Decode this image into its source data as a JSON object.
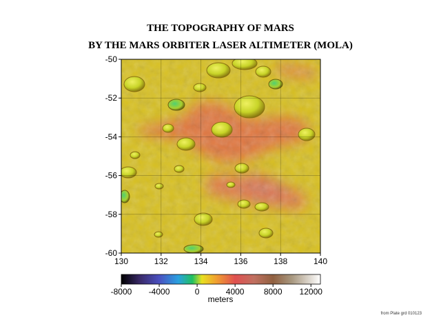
{
  "title_line1": "THE TOPOGRAPHY OF MARS",
  "title_line2": "BY THE MARS ORBITER LASER ALTIMETER (MOLA)",
  "credit": "from Plate grd 010123",
  "colorbar": {
    "label": "meters",
    "tick_labels": [
      "-8000",
      "-4000",
      "0",
      "4000",
      "8000",
      "12000"
    ],
    "range": [
      -8000,
      13000
    ],
    "stops": [
      {
        "value": -8000,
        "color": "#000000"
      },
      {
        "value": -6000,
        "color": "#3a2a6a"
      },
      {
        "value": -4000,
        "color": "#4a50c0"
      },
      {
        "value": -2000,
        "color": "#2aa0e0"
      },
      {
        "value": -500,
        "color": "#20c060"
      },
      {
        "value": 500,
        "color": "#e8e020"
      },
      {
        "value": 2000,
        "color": "#f0a030"
      },
      {
        "value": 4000,
        "color": "#e05050"
      },
      {
        "value": 6000,
        "color": "#c07060"
      },
      {
        "value": 8000,
        "color": "#906040"
      },
      {
        "value": 10000,
        "color": "#a89880"
      },
      {
        "value": 13000,
        "color": "#ffffff"
      }
    ]
  },
  "map": {
    "x_ticks": [
      "130",
      "132",
      "134",
      "136",
      "138",
      "140"
    ],
    "y_ticks": [
      "-50",
      "-52",
      "-54",
      "-56",
      "-58",
      "-60"
    ],
    "lon_range": [
      130,
      140
    ],
    "lat_range": [
      -50,
      -60
    ],
    "base_color": "#d8c020",
    "highland_color": "#e07040",
    "crater_color": "#c8d830",
    "deep_crater_color": "#40c060"
  }
}
